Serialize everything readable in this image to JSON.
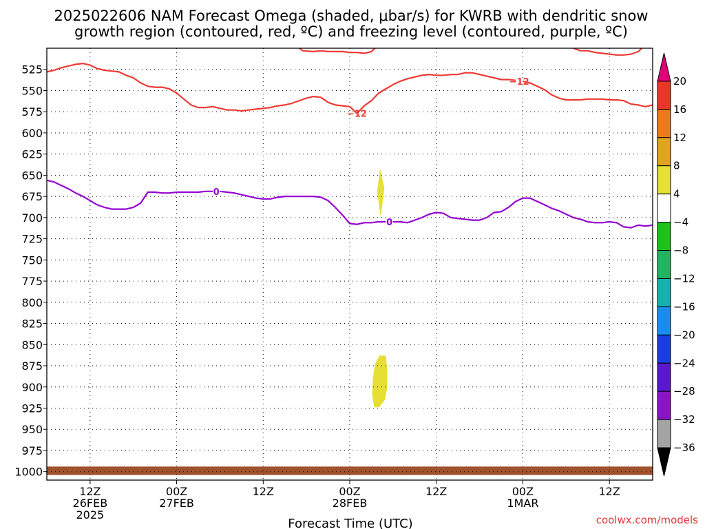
{
  "title_line1": "2025022606 NAM Forecast Omega (shaded, μbar/s) for KWRB with dendritic snow",
  "title_line2": "growth region (contoured, red, ºC) and freezing level (contoured, purple, ºC)",
  "credit": "coolwx.com/models",
  "chart_data": {
    "type": "contour",
    "xlabel": "Forecast Time (UTC)",
    "x_range_hours": [
      0,
      84
    ],
    "y_axis": {
      "scale": "pressure",
      "range_hPa": [
        1010,
        500
      ],
      "ticks": [
        525,
        550,
        575,
        600,
        625,
        650,
        675,
        700,
        725,
        750,
        775,
        800,
        825,
        850,
        875,
        900,
        925,
        950,
        975,
        1000
      ],
      "tick_labels": [
        "525",
        "550",
        "575",
        "600",
        "625",
        "650",
        "675",
        "700",
        "725",
        "750",
        "775",
        "800",
        "825",
        "850",
        "875",
        "900",
        "925",
        "950",
        "975",
        "1000"
      ]
    },
    "x_ticks": [
      {
        "hour": 6,
        "lines": [
          "12Z",
          "26FEB",
          "2025"
        ]
      },
      {
        "hour": 18,
        "lines": [
          "00Z",
          "27FEB"
        ]
      },
      {
        "hour": 30,
        "lines": [
          "12Z"
        ]
      },
      {
        "hour": 42,
        "lines": [
          "00Z",
          "28FEB"
        ]
      },
      {
        "hour": 54,
        "lines": [
          "12Z"
        ]
      },
      {
        "hour": 66,
        "lines": [
          "00Z",
          "1MAR"
        ]
      },
      {
        "hour": 78,
        "lines": [
          "12Z"
        ]
      }
    ],
    "grid": true,
    "contours": [
      {
        "level_label": "-12",
        "color": "#ee3a35",
        "label_positions": [
          {
            "x": 43,
            "p": 577
          },
          {
            "x": 65.5,
            "p": 539
          }
        ],
        "segments": [
          [
            [
              0,
              528
            ],
            [
              1,
              526
            ],
            [
              2,
              523
            ],
            [
              3,
              521
            ],
            [
              4,
              519
            ],
            [
              5,
              518
            ],
            [
              6,
              520
            ],
            [
              7,
              524
            ],
            [
              8,
              526
            ],
            [
              9,
              527
            ],
            [
              10,
              528
            ],
            [
              11,
              532
            ],
            [
              12,
              535
            ],
            [
              13,
              541
            ],
            [
              14,
              545
            ],
            [
              15,
              546
            ],
            [
              16,
              546
            ],
            [
              17,
              548
            ],
            [
              18,
              553
            ],
            [
              19,
              560
            ],
            [
              20,
              567
            ],
            [
              21,
              570
            ],
            [
              22,
              570
            ],
            [
              23,
              569
            ],
            [
              24,
              571
            ],
            [
              25,
              573
            ],
            [
              26,
              573
            ],
            [
              27,
              574
            ],
            [
              28,
              573
            ],
            [
              29,
              572
            ],
            [
              30,
              571
            ],
            [
              31,
              570
            ],
            [
              32,
              568
            ],
            [
              33,
              567
            ],
            [
              34,
              565
            ],
            [
              35,
              562
            ],
            [
              36,
              559
            ],
            [
              37,
              557
            ],
            [
              38,
              558
            ],
            [
              39,
              564
            ],
            [
              40,
              567
            ],
            [
              41,
              568
            ],
            [
              42,
              569
            ],
            [
              43,
              577
            ]
          ],
          [
            [
              43,
              577
            ],
            [
              44,
              568
            ],
            [
              45,
              562
            ],
            [
              46,
              553
            ],
            [
              47,
              548
            ],
            [
              48,
              543
            ],
            [
              49,
              539
            ],
            [
              50,
              536
            ],
            [
              51,
              534
            ],
            [
              52,
              532
            ],
            [
              53,
              531
            ],
            [
              54,
              532
            ],
            [
              55,
              532
            ],
            [
              56,
              531
            ],
            [
              57,
              531
            ],
            [
              58,
              529
            ],
            [
              59,
              529
            ],
            [
              60,
              531
            ],
            [
              61,
              533
            ],
            [
              62,
              535
            ],
            [
              63,
              537
            ],
            [
              64,
              537
            ],
            [
              65,
              538
            ]
          ],
          [
            [
              66,
              539
            ],
            [
              67,
              541
            ],
            [
              68,
              545
            ],
            [
              69,
              549
            ],
            [
              70,
              555
            ],
            [
              71,
              559
            ],
            [
              72,
              561
            ],
            [
              73,
              561
            ],
            [
              74,
              561
            ],
            [
              75,
              560
            ],
            [
              76,
              560
            ],
            [
              77,
              560
            ],
            [
              78,
              561
            ],
            [
              79,
              561
            ],
            [
              80,
              562
            ],
            [
              81,
              566
            ],
            [
              82,
              567
            ],
            [
              83,
              569
            ],
            [
              84,
              567
            ]
          ],
          [
            [
              35,
              500
            ],
            [
              35.5,
              503
            ],
            [
              37,
              504
            ],
            [
              38,
              503
            ],
            [
              39,
              504
            ],
            [
              40,
              504
            ],
            [
              41,
              504
            ],
            [
              42,
              505
            ],
            [
              43,
              505
            ],
            [
              44,
              506
            ],
            [
              45,
              504
            ],
            [
              45.5,
              500
            ]
          ],
          [
            [
              73,
              500
            ],
            [
              74,
              503
            ],
            [
              75,
              503
            ],
            [
              76,
              505
            ],
            [
              77,
              506
            ],
            [
              78,
              507
            ],
            [
              79,
              508
            ],
            [
              80,
              508
            ],
            [
              81,
              507
            ],
            [
              82,
              504
            ],
            [
              82.5,
              500
            ]
          ]
        ]
      },
      {
        "level_label": "0",
        "color": "#9400d3",
        "label_positions": [
          {
            "x": 23.5,
            "p": 669
          },
          {
            "x": 47.5,
            "p": 705
          }
        ],
        "segments": [
          [
            [
              0,
              656
            ],
            [
              1,
              658
            ],
            [
              2,
              662
            ],
            [
              3,
              666
            ],
            [
              4,
              671
            ],
            [
              5,
              675
            ],
            [
              6,
              680
            ],
            [
              7,
              685
            ],
            [
              8,
              688
            ],
            [
              9,
              690
            ],
            [
              10,
              690
            ],
            [
              11,
              690
            ],
            [
              12,
              688
            ],
            [
              13,
              683
            ],
            [
              14,
              670
            ],
            [
              15,
              670
            ],
            [
              16,
              671
            ],
            [
              17,
              671
            ],
            [
              18,
              670
            ],
            [
              19,
              670
            ],
            [
              20,
              670
            ],
            [
              21,
              670
            ],
            [
              22,
              669
            ],
            [
              23,
              669
            ]
          ],
          [
            [
              24,
              669
            ],
            [
              25,
              670
            ],
            [
              26,
              671
            ],
            [
              27,
              673
            ],
            [
              28,
              675
            ],
            [
              29,
              677
            ],
            [
              30,
              678
            ],
            [
              31,
              678
            ],
            [
              32,
              676
            ],
            [
              33,
              675
            ],
            [
              34,
              675
            ],
            [
              35,
              675
            ],
            [
              36,
              675
            ],
            [
              37,
              675
            ],
            [
              38,
              676
            ],
            [
              39,
              680
            ],
            [
              40,
              688
            ],
            [
              41,
              697
            ],
            [
              42,
              707
            ],
            [
              43,
              708
            ],
            [
              44,
              706
            ],
            [
              45,
              706
            ],
            [
              46,
              705
            ],
            [
              47,
              705
            ]
          ],
          [
            [
              48,
              705
            ],
            [
              49,
              705
            ],
            [
              50,
              706
            ],
            [
              51,
              703
            ],
            [
              52,
              700
            ],
            [
              53,
              696
            ],
            [
              54,
              694
            ],
            [
              55,
              695
            ],
            [
              56,
              700
            ],
            [
              57,
              701
            ],
            [
              58,
              702
            ],
            [
              59,
              703
            ],
            [
              60,
              703
            ],
            [
              61,
              700
            ],
            [
              62,
              694
            ],
            [
              63,
              693
            ],
            [
              64,
              688
            ],
            [
              65,
              681
            ],
            [
              66,
              677
            ],
            [
              67,
              677
            ],
            [
              68,
              681
            ],
            [
              69,
              685
            ],
            [
              70,
              689
            ],
            [
              71,
              692
            ],
            [
              72,
              696
            ],
            [
              73,
              700
            ],
            [
              74,
              702
            ],
            [
              75,
              705
            ],
            [
              76,
              706
            ],
            [
              77,
              706
            ],
            [
              78,
              705
            ],
            [
              79,
              706
            ],
            [
              80,
              711
            ],
            [
              81,
              712
            ],
            [
              82,
              709
            ],
            [
              83,
              710
            ],
            [
              84,
              709
            ]
          ]
        ]
      }
    ],
    "shaded_regions": [
      {
        "value_range": [
          4,
          8
        ],
        "color": "#e5e033",
        "polygon": [
          [
            46.2,
            642
          ],
          [
            46.8,
            665
          ],
          [
            46.3,
            700
          ],
          [
            45.8,
            669
          ]
        ]
      },
      {
        "value_range": [
          4,
          8
        ],
        "color": "#e5e033",
        "polygon": [
          [
            46.1,
            863
          ],
          [
            47.0,
            863
          ],
          [
            47.2,
            880
          ],
          [
            47.2,
            900
          ],
          [
            46.9,
            915
          ],
          [
            46.1,
            924
          ],
          [
            45.4,
            924
          ],
          [
            45.1,
            910
          ],
          [
            45.2,
            890
          ],
          [
            45.5,
            873
          ]
        ]
      }
    ],
    "terrain": {
      "color": "#a0522d",
      "top_p": 994,
      "bottom_p": 1004
    },
    "colorbar": {
      "bins": [
        {
          "color": "#e00078"
        },
        {
          "color": "#ea3626"
        },
        {
          "color": "#ec7a1c"
        },
        {
          "color": "#e2a41d"
        },
        {
          "color": "#e5e033"
        },
        {
          "color": "#ffffff"
        },
        {
          "color": "#1dc11d"
        },
        {
          "color": "#22b463"
        },
        {
          "color": "#17b0b0"
        },
        {
          "color": "#1a8cf0"
        },
        {
          "color": "#1a3de0"
        },
        {
          "color": "#5a18cc"
        },
        {
          "color": "#8a14c4"
        },
        {
          "color": "#a4a4a4"
        },
        {
          "color": "#000000"
        }
      ],
      "labels": [
        "20",
        "16",
        "12",
        "8",
        "4",
        "−4",
        "−8",
        "−12",
        "−16",
        "−20",
        "−24",
        "−28",
        "−32",
        "−36"
      ]
    }
  }
}
